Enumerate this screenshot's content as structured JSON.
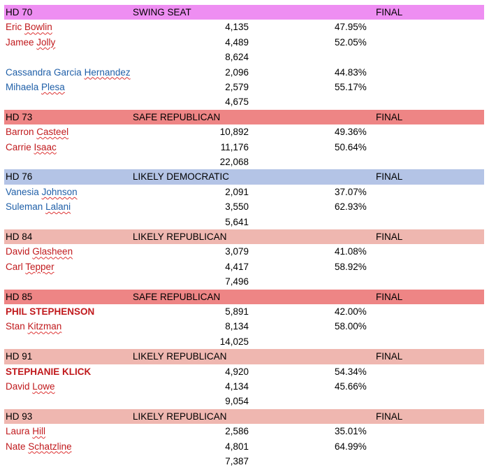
{
  "races": [
    {
      "district": "HD 70",
      "rating": "SWING SEAT",
      "status": "FINAL",
      "color": "#ee8ef2",
      "groups": [
        {
          "party_color": "#c0191c",
          "candidates": [
            {
              "first": "Eric",
              "last": "Bowlin",
              "votes": "4,135",
              "pct": "47.95%",
              "bold": false
            },
            {
              "first": "Jamee",
              "last": "Jolly",
              "votes": "4,489",
              "pct": "52.05%",
              "bold": false
            }
          ],
          "total": "8,624"
        },
        {
          "party_color": "#1f5fa8",
          "candidates": [
            {
              "first": "Cassandra Garcia",
              "last": "Hernandez",
              "votes": "2,096",
              "pct": "44.83%",
              "bold": false
            },
            {
              "first": "Mihaela",
              "last": "Plesa",
              "votes": "2,579",
              "pct": "55.17%",
              "bold": false
            }
          ],
          "total": "4,675"
        }
      ]
    },
    {
      "district": "HD 73",
      "rating": "SAFE REPUBLICAN",
      "status": "FINAL",
      "color": "#ee8585",
      "groups": [
        {
          "party_color": "#c0191c",
          "candidates": [
            {
              "first": "Barron",
              "last": "Casteel",
              "votes": "10,892",
              "pct": "49.36%",
              "bold": false
            },
            {
              "first": "Carrie",
              "last": "Isaac",
              "votes": "11,176",
              "pct": "50.64%",
              "bold": false
            }
          ],
          "total": "22,068"
        }
      ]
    },
    {
      "district": "HD 76",
      "rating": "LIKELY DEMOCRATIC",
      "status": "FINAL",
      "color": "#b4c4e6",
      "groups": [
        {
          "party_color": "#1f5fa8",
          "candidates": [
            {
              "first": "Vanesia",
              "last": "Johnson",
              "votes": "2,091",
              "pct": "37.07%",
              "bold": false
            },
            {
              "first": "Suleman",
              "last": "Lalani",
              "votes": "3,550",
              "pct": "62.93%",
              "bold": false
            }
          ],
          "total": "5,641"
        }
      ]
    },
    {
      "district": "HD 84",
      "rating": "LIKELY REPUBLICAN",
      "status": "FINAL",
      "color": "#efb7b0",
      "groups": [
        {
          "party_color": "#c0191c",
          "candidates": [
            {
              "first": "David",
              "last": "Glasheen",
              "votes": "3,079",
              "pct": "41.08%",
              "bold": false
            },
            {
              "first": "Carl",
              "last": "Tepper",
              "votes": "4,417",
              "pct": "58.92%",
              "bold": false
            }
          ],
          "total": "7,496"
        }
      ]
    },
    {
      "district": "HD 85",
      "rating": "SAFE REPUBLICAN",
      "status": "FINAL",
      "color": "#ee8585",
      "groups": [
        {
          "party_color": "#c0191c",
          "candidates": [
            {
              "first": "PHIL STEPHENSON",
              "last": "",
              "votes": "5,891",
              "pct": "42.00%",
              "bold": true
            },
            {
              "first": "Stan",
              "last": "Kitzman",
              "votes": "8,134",
              "pct": "58.00%",
              "bold": false
            }
          ],
          "total": "14,025"
        }
      ]
    },
    {
      "district": "HD 91",
      "rating": "LIKELY REPUBLICAN",
      "status": "FINAL",
      "color": "#efb7b0",
      "groups": [
        {
          "party_color": "#c0191c",
          "candidates": [
            {
              "first": "STEPHANIE KLICK",
              "last": "",
              "votes": "4,920",
              "pct": "54.34%",
              "bold": true
            },
            {
              "first": "David",
              "last": "Lowe",
              "votes": "4,134",
              "pct": "45.66%",
              "bold": false
            }
          ],
          "total": "9,054"
        }
      ]
    },
    {
      "district": "HD 93",
      "rating": "LIKELY REPUBLICAN",
      "status": "FINAL",
      "color": "#efb7b0",
      "groups": [
        {
          "party_color": "#c0191c",
          "candidates": [
            {
              "first": "Laura",
              "last": "Hill",
              "votes": "2,586",
              "pct": "35.01%",
              "bold": false
            },
            {
              "first": "Nate",
              "last": "Schatzline",
              "votes": "4,801",
              "pct": "64.99%",
              "bold": false
            }
          ],
          "total": "7,387"
        }
      ]
    }
  ]
}
